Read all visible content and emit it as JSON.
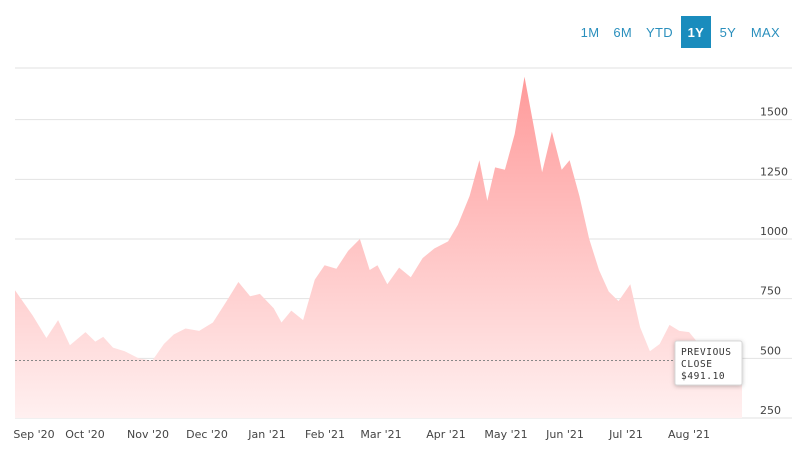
{
  "ranges": {
    "buttons": [
      "1M",
      "6M",
      "YTD",
      "1Y",
      "5Y",
      "MAX"
    ],
    "active": "1Y"
  },
  "tooltip": {
    "line1": "PREVIOUS",
    "line2": "CLOSE",
    "line3": "$491.10"
  },
  "colors": {
    "accent": "#1a8cbd",
    "area_top": "#ff9a9a",
    "area_bottom": "#fff0f0",
    "grid": "#e2e2e2"
  },
  "chart_data": {
    "type": "area",
    "title": "",
    "xlabel": "",
    "ylabel": "",
    "ylim": [
      250,
      1750
    ],
    "yticks": [
      250,
      500,
      750,
      1000,
      1250,
      1500
    ],
    "y_axis_position": "right",
    "grid": true,
    "previous_close": 491.1,
    "x_tick_labels": [
      "Sep '20",
      "Oct '20",
      "Nov '20",
      "Dec '20",
      "Jan '21",
      "Feb '21",
      "Mar '21",
      "Apr '21",
      "May '21",
      "Jun '21",
      "Jul '21",
      "Aug '21"
    ],
    "x_range": [
      "2020-08-25",
      "2021-08-31"
    ],
    "series": [
      {
        "x": [
          "2020-08-25",
          "2020-09-03",
          "2020-09-10",
          "2020-09-16",
          "2020-09-22",
          "2020-09-30",
          "2020-10-05",
          "2020-10-09",
          "2020-10-14",
          "2020-10-20",
          "2020-10-27",
          "2020-11-03",
          "2020-11-09",
          "2020-11-14",
          "2020-11-20",
          "2020-11-27",
          "2020-12-04",
          "2020-12-11",
          "2020-12-17",
          "2020-12-23",
          "2020-12-28",
          "2021-01-04",
          "2021-01-08",
          "2021-01-13",
          "2021-01-19",
          "2021-01-25",
          "2021-01-30",
          "2021-02-05",
          "2021-02-11",
          "2021-02-17",
          "2021-02-22",
          "2021-02-26",
          "2021-03-03",
          "2021-03-09",
          "2021-03-15",
          "2021-03-21",
          "2021-03-27",
          "2021-04-03",
          "2021-04-08",
          "2021-04-14",
          "2021-04-19",
          "2021-04-23",
          "2021-04-27",
          "2021-05-02",
          "2021-05-07",
          "2021-05-12",
          "2021-05-17",
          "2021-05-21",
          "2021-05-26",
          "2021-05-31",
          "2021-06-04",
          "2021-06-09",
          "2021-06-14",
          "2021-06-19",
          "2021-06-24",
          "2021-06-29",
          "2021-07-05",
          "2021-07-10",
          "2021-07-15",
          "2021-07-20",
          "2021-07-25",
          "2021-07-30",
          "2021-08-04",
          "2021-08-09",
          "2021-08-14",
          "2021-08-19",
          "2021-08-25",
          "2021-08-31"
        ],
        "values": [
          785,
          680,
          585,
          660,
          555,
          610,
          570,
          590,
          545,
          530,
          500,
          490,
          560,
          600,
          625,
          615,
          650,
          740,
          820,
          760,
          770,
          710,
          650,
          700,
          660,
          830,
          890,
          875,
          950,
          1000,
          870,
          890,
          810,
          880,
          840,
          920,
          960,
          990,
          1060,
          1180,
          1330,
          1160,
          1300,
          1290,
          1440,
          1680,
          1460,
          1280,
          1450,
          1290,
          1330,
          1180,
          1000,
          870,
          780,
          740,
          810,
          630,
          530,
          560,
          640,
          615,
          610,
          560,
          500,
          490,
          485,
          491
        ]
      }
    ]
  }
}
